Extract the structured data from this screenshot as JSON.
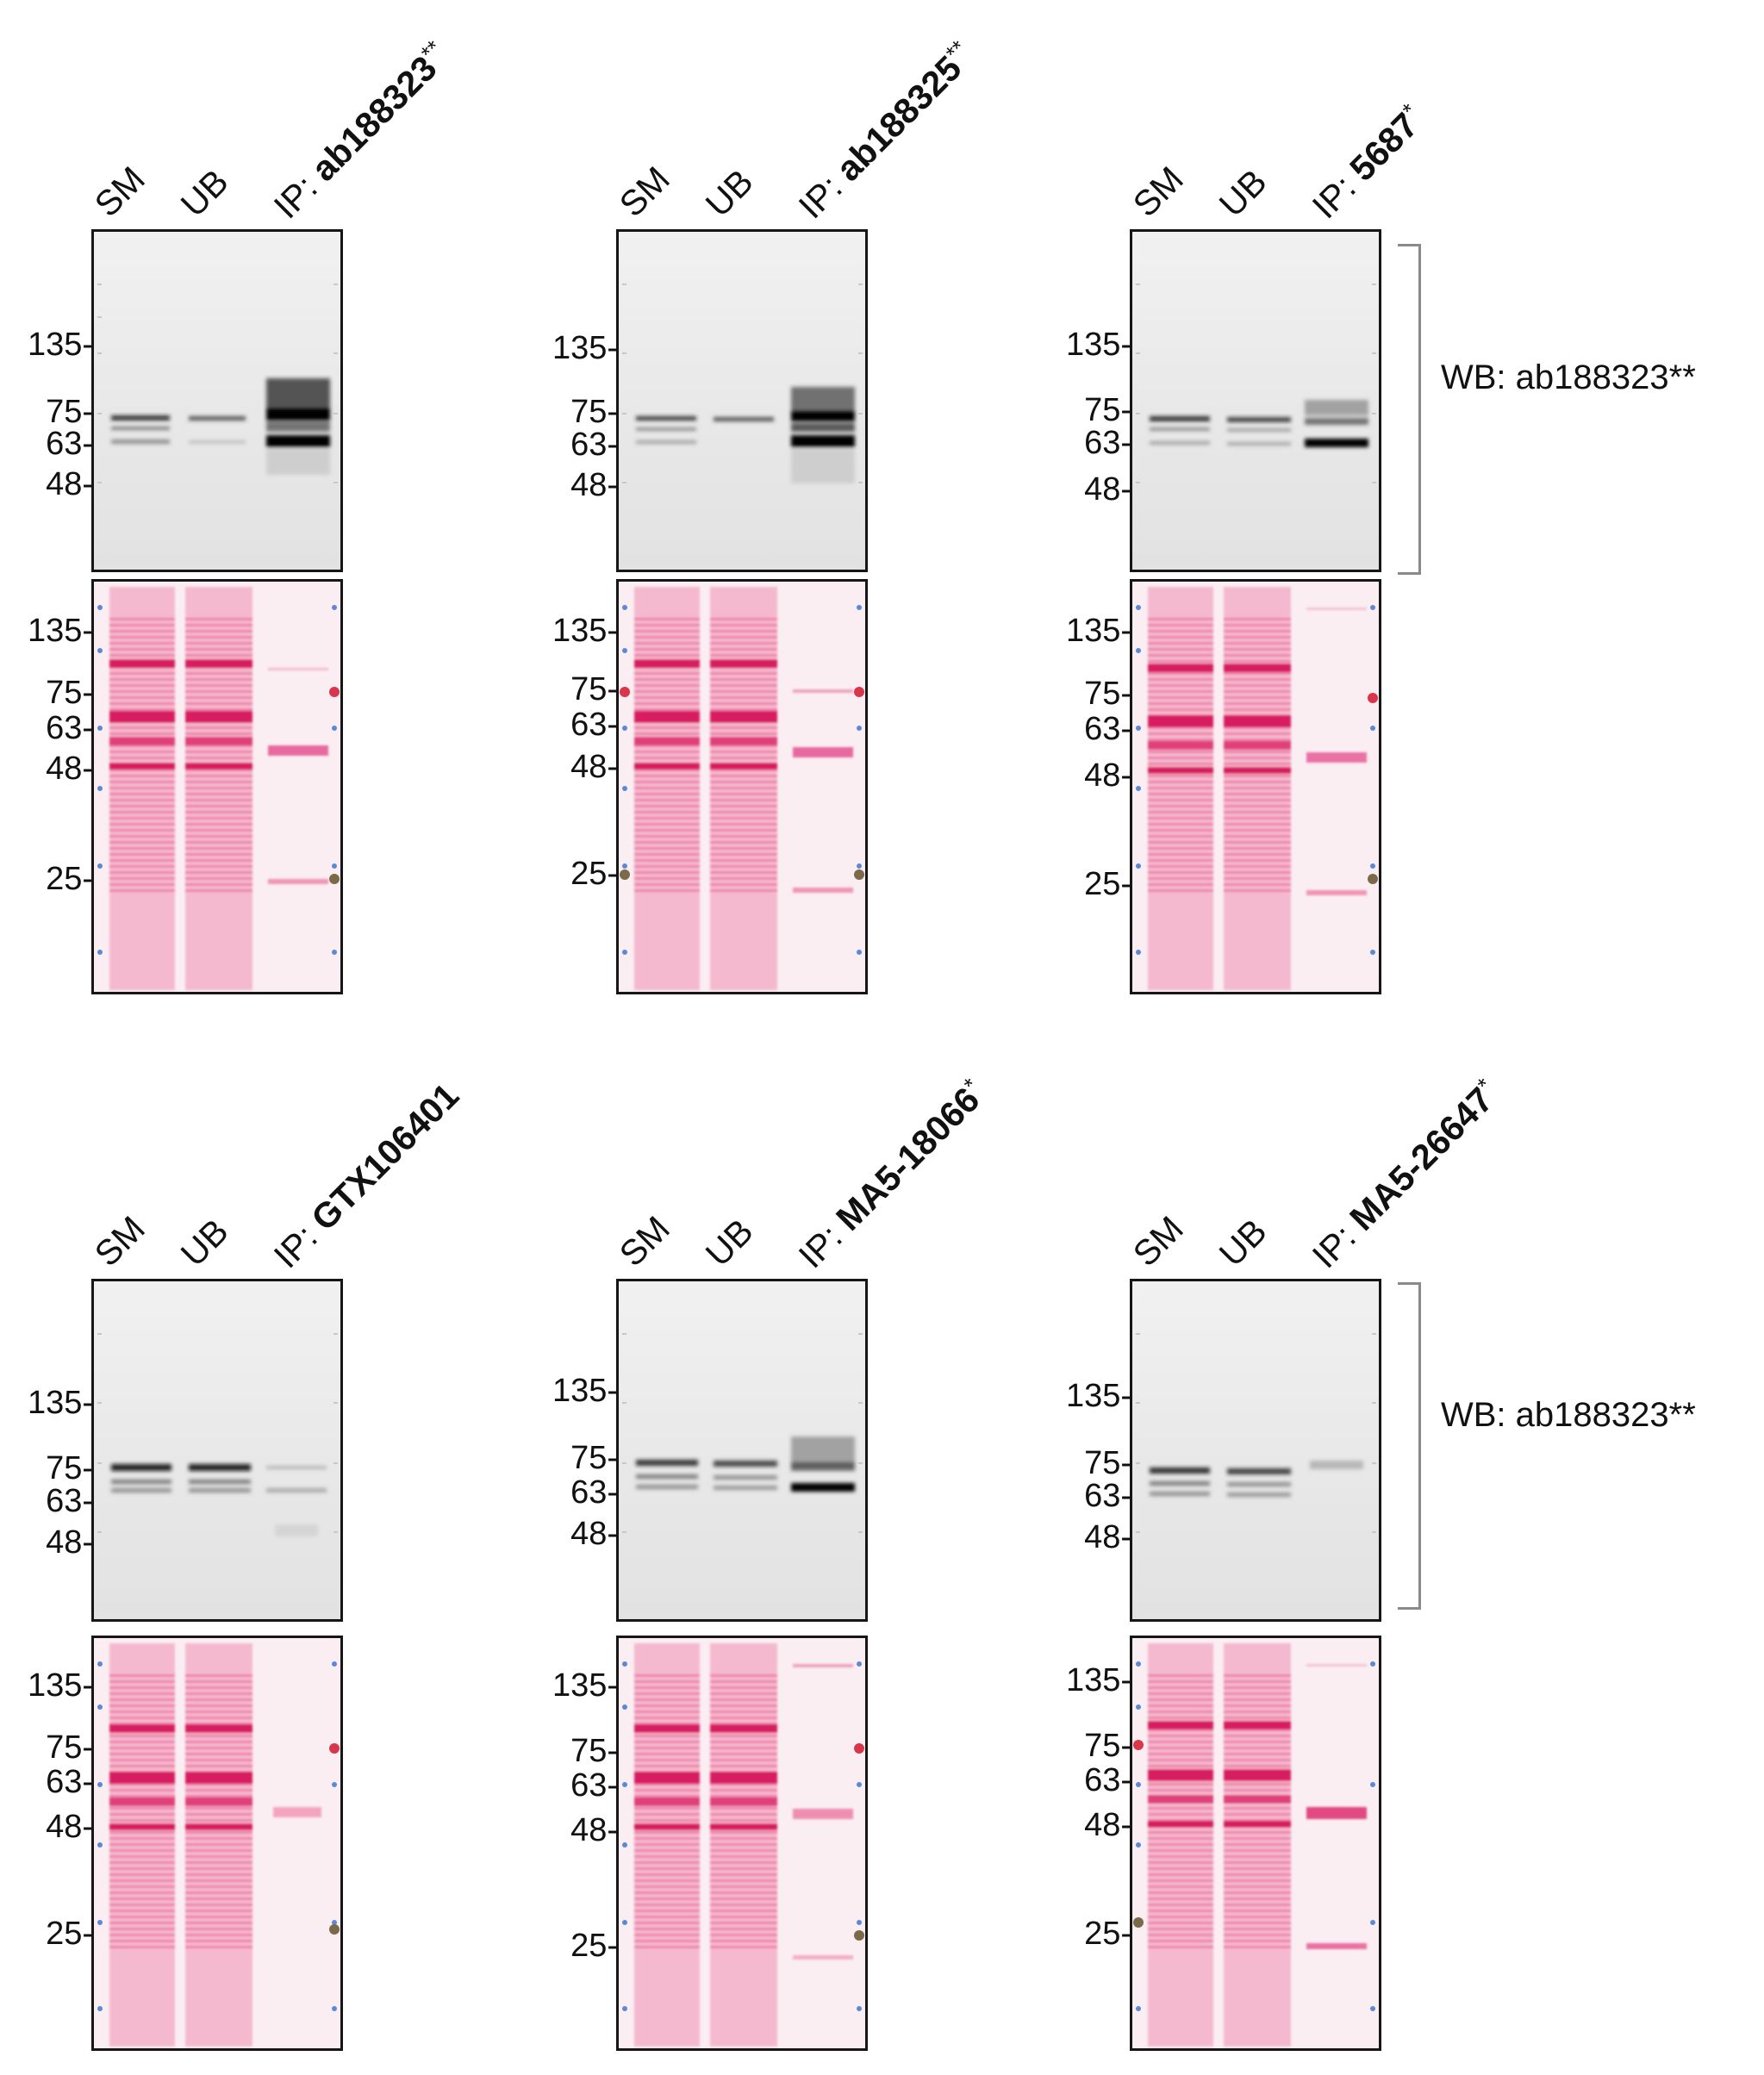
{
  "lane_labels": {
    "sm": "SM",
    "ub": "UB",
    "ip_prefix": "IP: "
  },
  "wb_label": "WB: ab188323**",
  "panels": [
    {
      "id": "p1",
      "antibody": "ab188323",
      "sup": "**",
      "wb_markers": [
        "135-",
        "75-",
        "63-",
        "48-"
      ],
      "ponceau_markers": [
        "135-",
        "75-",
        "63-",
        "48-",
        "25-"
      ]
    },
    {
      "id": "p2",
      "antibody": "ab188325",
      "sup": "**",
      "wb_markers": [
        "135-",
        "75-",
        "63-",
        "48-"
      ],
      "ponceau_markers": [
        "135-",
        "75-",
        "63-",
        "48-",
        "25-"
      ]
    },
    {
      "id": "p3",
      "antibody": "5687",
      "sup": "*",
      "wb_markers": [
        "135-",
        "75-",
        "63-",
        "48-"
      ],
      "ponceau_markers": [
        "135-",
        "75-",
        "63-",
        "48-",
        "25-"
      ]
    },
    {
      "id": "p4",
      "antibody": "GTX106401",
      "sup": "",
      "wb_markers": [
        "135-",
        "75-",
        "63-",
        "48-"
      ],
      "ponceau_markers": [
        "135-",
        "75-",
        "63-",
        "48-",
        "25-"
      ]
    },
    {
      "id": "p5",
      "antibody": "MA5-18066",
      "sup": "*",
      "wb_markers": [
        "135-",
        "75-",
        "63-",
        "48-"
      ],
      "ponceau_markers": [
        "135-",
        "75-",
        "63-",
        "48-",
        "25-"
      ]
    },
    {
      "id": "p6",
      "antibody": "MA5-26647",
      "sup": "*",
      "wb_markers": [
        "135-",
        "75-",
        "63-",
        "48-"
      ],
      "ponceau_markers": [
        "135-",
        "75-",
        "63-",
        "48-",
        "25-"
      ]
    }
  ]
}
